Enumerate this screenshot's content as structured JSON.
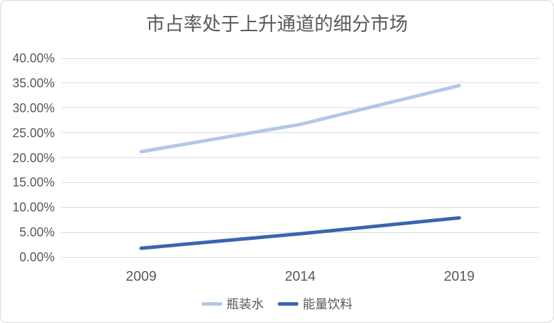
{
  "chart_data": {
    "type": "line",
    "title": "市占率处于上升通道的细分市场",
    "categories": [
      "2009",
      "2014",
      "2019"
    ],
    "series": [
      {
        "name": "瓶装水",
        "color": "#b4c7e7",
        "values": [
          21.2,
          26.7,
          34.5
        ]
      },
      {
        "name": "能量饮料",
        "color": "#3c64ae",
        "values": [
          1.8,
          4.7,
          7.9
        ]
      }
    ],
    "ylim": [
      0,
      40
    ],
    "y_ticks": [
      {
        "value": 40,
        "label": "40.00%"
      },
      {
        "value": 35,
        "label": "35.00%"
      },
      {
        "value": 30,
        "label": "30.00%"
      },
      {
        "value": 25,
        "label": "25.00%"
      },
      {
        "value": 20,
        "label": "20.00%"
      },
      {
        "value": 15,
        "label": "15.00%"
      },
      {
        "value": 10,
        "label": "10.00%"
      },
      {
        "value": 5,
        "label": "5.00%"
      },
      {
        "value": 0,
        "label": "0.00%"
      }
    ],
    "xlabel": "",
    "ylabel": "",
    "grid": true,
    "legend_position": "bottom"
  },
  "style": {
    "text_color": "#595959",
    "gridline_color": "#dcdcdc",
    "card_border_color": "#d9d9d9",
    "background": "#ffffff"
  }
}
